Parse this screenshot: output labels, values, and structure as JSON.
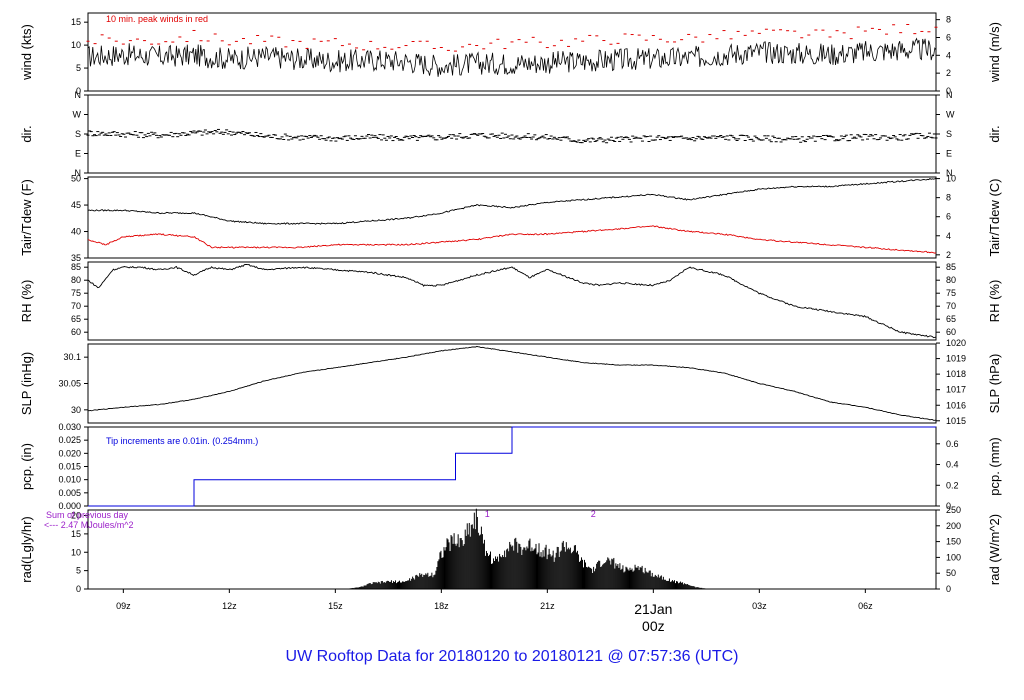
{
  "colors": {
    "accent": "#1a1ae6",
    "peak": "#e00000",
    "dew": "#e00000",
    "precip": "#0000dd",
    "rad": "#9b1fc9",
    "date": "#e00000",
    "line": "#000000"
  },
  "footer": {
    "title": "UW Rooftop Data for 20180120  to  20180121 @ 07:57:36  (UTC)"
  },
  "xaxis": {
    "ticks": [
      {
        "hour": 9,
        "label": "09z"
      },
      {
        "hour": 12,
        "label": "12z"
      },
      {
        "hour": 15,
        "label": "15z"
      },
      {
        "hour": 18,
        "label": "18z"
      },
      {
        "hour": 21,
        "label": "21z"
      },
      {
        "hour": 24,
        "label": "00z"
      },
      {
        "hour": 27,
        "label": "03z"
      },
      {
        "hour": 30,
        "label": "06z"
      }
    ],
    "date_label": "21Jan",
    "range_hours": [
      8.0,
      32.0
    ]
  },
  "chart_data": [
    {
      "id": "wind",
      "type": "line",
      "ylabel_left": "wind (kts)",
      "ylabel_right": "wind (m/s)",
      "ylim": [
        0,
        17
      ],
      "left_ticks": [
        0,
        5,
        10,
        15
      ],
      "right_ticks": [
        {
          "v": 0,
          "label": "0"
        },
        {
          "v": 3.89,
          "label": "2"
        },
        {
          "v": 7.78,
          "label": "4"
        },
        {
          "v": 11.66,
          "label": "6"
        },
        {
          "v": 15.55,
          "label": "8"
        }
      ],
      "annotation": "10 min. peak winds in red",
      "series": [
        {
          "role": "speed",
          "x": [
            8.0,
            9,
            10,
            11,
            12,
            13,
            14,
            15,
            16,
            17,
            18,
            19,
            20,
            21,
            22,
            23,
            24,
            25,
            26,
            27,
            28,
            29,
            30,
            31,
            32
          ],
          "y": [
            7.5,
            8,
            7.5,
            7.8,
            7,
            7.5,
            7,
            6.5,
            6.8,
            6.5,
            5.5,
            6,
            6,
            6.2,
            6.5,
            6.8,
            7,
            7.2,
            8,
            8.5,
            8.2,
            8,
            8.5,
            9,
            9
          ]
        },
        {
          "role": "peak",
          "x": [
            8.0,
            9,
            10,
            11,
            12,
            13,
            14,
            15,
            16,
            17,
            18,
            19,
            20,
            21,
            22,
            23,
            24,
            25,
            26,
            27,
            28,
            29,
            30,
            31,
            32
          ],
          "y": [
            11,
            11,
            11,
            12,
            11,
            11,
            10.5,
            10.5,
            10,
            10,
            9.5,
            10,
            10.5,
            10.5,
            11,
            11.5,
            11.5,
            11.5,
            12,
            12.5,
            12.5,
            12,
            13,
            13.5,
            14
          ]
        }
      ]
    },
    {
      "id": "dir",
      "type": "scatter",
      "ylabel_left": "dir.",
      "ylabel_right": "dir.",
      "ylim": [
        0,
        360
      ],
      "left_ticks": [
        {
          "v": 0,
          "label": "N"
        },
        {
          "v": 90,
          "label": "E"
        },
        {
          "v": 180,
          "label": "S"
        },
        {
          "v": 270,
          "label": "W"
        },
        {
          "v": 360,
          "label": "N"
        }
      ],
      "right_ticks": [
        {
          "v": 0,
          "label": "N"
        },
        {
          "v": 90,
          "label": "E"
        },
        {
          "v": 180,
          "label": "S"
        },
        {
          "v": 270,
          "label": "W"
        },
        {
          "v": 360,
          "label": "N"
        }
      ],
      "series": [
        {
          "role": "direction",
          "x": [
            8,
            9,
            10,
            11,
            12,
            13,
            14,
            15,
            16,
            17,
            18,
            19,
            20,
            21,
            22,
            23,
            24,
            25,
            26,
            27,
            28,
            29,
            30,
            31,
            32
          ],
          "y": [
            185,
            180,
            175,
            185,
            190,
            170,
            165,
            160,
            165,
            160,
            165,
            175,
            170,
            165,
            150,
            155,
            160,
            160,
            165,
            160,
            155,
            160,
            165,
            165,
            175
          ]
        }
      ]
    },
    {
      "id": "temp",
      "type": "line",
      "ylabel_left": "Tair/Tdew (F)",
      "ylabel_right": "Tair/Tdew (C)",
      "ylim": [
        35,
        50.3
      ],
      "left_ticks": [
        35,
        40,
        45,
        50
      ],
      "right_ticks": [
        {
          "v": 35.6,
          "label": "2"
        },
        {
          "v": 39.2,
          "label": "4"
        },
        {
          "v": 42.8,
          "label": "6"
        },
        {
          "v": 46.4,
          "label": "8"
        },
        {
          "v": 50.0,
          "label": "10"
        }
      ],
      "series": [
        {
          "role": "air",
          "x": [
            8.0,
            9,
            10,
            11,
            12,
            13,
            14,
            15,
            16,
            17,
            18,
            19,
            20,
            21,
            22,
            23,
            24,
            25,
            26,
            27,
            28,
            29,
            30,
            31,
            32
          ],
          "y": [
            44,
            44,
            43.5,
            43.5,
            42,
            41.5,
            41.5,
            41.5,
            42,
            42.5,
            43.5,
            45,
            44.5,
            45.5,
            46,
            46.5,
            47,
            46,
            47,
            48,
            48.5,
            48.5,
            49,
            49.5,
            50
          ]
        },
        {
          "role": "dew",
          "x": [
            8.0,
            8.5,
            9,
            10,
            11,
            11.5,
            12,
            13,
            14,
            15,
            16,
            17,
            18,
            19,
            20,
            21,
            22,
            23,
            24,
            25,
            26,
            27,
            28,
            29,
            30,
            31,
            32
          ],
          "y": [
            38.5,
            37.5,
            39,
            39.5,
            39,
            37,
            37,
            37,
            37,
            37.5,
            37.5,
            37.5,
            38,
            38.5,
            39.5,
            39.5,
            40,
            40.5,
            41,
            40,
            39.5,
            38.5,
            38,
            37.5,
            37,
            36.5,
            36
          ]
        }
      ]
    },
    {
      "id": "rh",
      "type": "line",
      "ylabel_left": "RH (%)",
      "ylabel_right": "RH (%)",
      "ylim": [
        57,
        87
      ],
      "left_ticks": [
        60,
        65,
        70,
        75,
        80,
        85
      ],
      "right_ticks": [
        {
          "v": 60,
          "label": "60"
        },
        {
          "v": 65,
          "label": "65"
        },
        {
          "v": 70,
          "label": "70"
        },
        {
          "v": 75,
          "label": "75"
        },
        {
          "v": 80,
          "label": "80"
        },
        {
          "v": 85,
          "label": "85"
        }
      ],
      "series": [
        {
          "role": "rh",
          "x": [
            8.0,
            8.3,
            8.7,
            9,
            9.5,
            10,
            10.5,
            11,
            11.5,
            12,
            12.5,
            13,
            14,
            15,
            16,
            17,
            17.5,
            18,
            18.5,
            19,
            20,
            20.5,
            21,
            22,
            22.5,
            23,
            24,
            24.5,
            25,
            26,
            27,
            28,
            29,
            30,
            31,
            32
          ],
          "y": [
            80,
            77,
            84,
            85,
            85,
            84,
            85,
            82,
            85,
            84,
            86,
            84,
            85,
            84,
            83,
            81,
            78,
            78,
            80,
            82,
            85,
            81,
            84,
            79,
            78,
            79,
            78,
            80,
            85,
            82,
            75,
            70,
            68,
            66,
            60,
            58
          ]
        }
      ]
    },
    {
      "id": "slp",
      "type": "line",
      "ylabel_left": "SLP (inHg)",
      "ylabel_right": "SLP (hPa)",
      "ylim": [
        29.975,
        30.125
      ],
      "left_ticks": [
        30.0,
        30.05,
        30.1
      ],
      "right_ticks": [
        {
          "v": 29.9792,
          "label": "1015"
        },
        {
          "v": 30.0087,
          "label": "1016"
        },
        {
          "v": 30.0382,
          "label": "1017"
        },
        {
          "v": 30.0678,
          "label": "1018"
        },
        {
          "v": 30.0973,
          "label": "1019"
        },
        {
          "v": 30.1268,
          "label": "1020"
        }
      ],
      "series": [
        {
          "role": "pressure",
          "x": [
            8.0,
            9,
            10,
            11,
            12,
            12.5,
            13,
            14,
            15,
            16,
            17,
            18,
            19,
            20,
            21,
            22,
            23,
            24,
            25,
            26,
            27,
            28,
            29,
            30,
            31,
            32
          ],
          "y": [
            29.998,
            30.005,
            30.01,
            30.02,
            30.035,
            30.045,
            30.055,
            30.07,
            30.08,
            30.09,
            30.1,
            30.112,
            30.12,
            30.11,
            30.1,
            30.09,
            30.085,
            30.085,
            30.08,
            30.07,
            30.05,
            30.035,
            30.015,
            30.005,
            29.99,
            29.98
          ]
        }
      ]
    },
    {
      "id": "pcp",
      "type": "line",
      "ylabel_left": "pcp. (in)",
      "ylabel_right": "pcp. (mm)",
      "ylim": [
        0,
        0.03
      ],
      "left_ticks": [
        {
          "v": 0,
          "label": "0.000"
        },
        {
          "v": 0.005,
          "label": "0.005"
        },
        {
          "v": 0.01,
          "label": "0.010"
        },
        {
          "v": 0.015,
          "label": "0.015"
        },
        {
          "v": 0.02,
          "label": "0.020"
        },
        {
          "v": 0.025,
          "label": "0.025"
        },
        {
          "v": 0.03,
          "label": "0.030"
        }
      ],
      "right_ticks": [
        {
          "v": 0,
          "label": "0"
        },
        {
          "v": 0.00787,
          "label": "0.2"
        },
        {
          "v": 0.01575,
          "label": "0.4"
        },
        {
          "v": 0.02362,
          "label": "0.6"
        }
      ],
      "annotation": "Tip increments are 0.01in. (0.254mm.)",
      "series": [
        {
          "role": "cumulative",
          "x": [
            8.0,
            11.0,
            11.0,
            18.4,
            18.4,
            20.0,
            20.0,
            32
          ],
          "y": [
            0,
            0,
            0.01,
            0.01,
            0.02,
            0.02,
            0.03,
            0.03
          ]
        }
      ]
    },
    {
      "id": "rad",
      "type": "area",
      "ylabel_left": "rad(Lgly/hr)",
      "ylabel_right": "rad (W/m^2)",
      "ylim": [
        0,
        21.5
      ],
      "left_ticks": [
        0,
        5,
        10,
        15,
        20
      ],
      "right_ticks": [
        {
          "v": 0,
          "label": "0"
        },
        {
          "v": 4.3,
          "label": "50"
        },
        {
          "v": 8.6,
          "label": "100"
        },
        {
          "v": 12.9,
          "label": "150"
        },
        {
          "v": 17.2,
          "label": "200"
        },
        {
          "v": 21.5,
          "label": "250"
        }
      ],
      "annotation_top": "Sum of previous day",
      "annotation_bottom": "<--- 2.47 MJoules/m^2",
      "markers": [
        {
          "x": 19.3,
          "label": "1"
        },
        {
          "x": 22.3,
          "label": "2"
        }
      ],
      "series": [
        {
          "role": "radiation",
          "x": [
            15.3,
            15.7,
            16,
            16.5,
            17,
            17.2,
            17.5,
            17.8,
            18,
            18.3,
            18.6,
            18.8,
            19,
            19.2,
            19.5,
            19.7,
            20,
            20.3,
            20.6,
            21,
            21.2,
            21.5,
            21.8,
            22,
            22.3,
            22.6,
            22.9,
            23.2,
            23.5,
            23.8,
            24,
            24.3,
            24.6,
            24.9,
            25.2,
            25.6
          ],
          "y": [
            0,
            0.5,
            1.5,
            2,
            2,
            3,
            4,
            4,
            10,
            13,
            13,
            17,
            19.5,
            12,
            7,
            10,
            12,
            11,
            12,
            10,
            9,
            12,
            10,
            7,
            5,
            8,
            7,
            5,
            6,
            5,
            4,
            3,
            2,
            1.5,
            0.5,
            0
          ]
        }
      ]
    }
  ]
}
